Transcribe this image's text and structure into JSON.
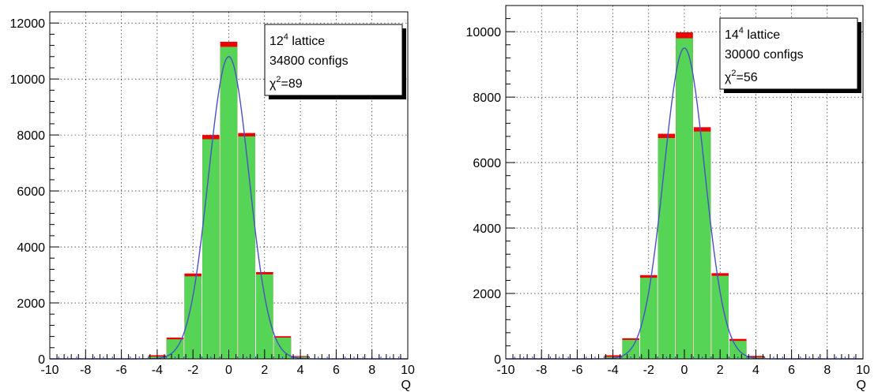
{
  "chart_data": [
    {
      "type": "bar",
      "xlabel": "Q",
      "ylabel": "",
      "xlim": [
        -10,
        10
      ],
      "ylim": [
        0,
        12400
      ],
      "xticks": [
        "-10",
        "-8",
        "-6",
        "-4",
        "-2",
        "0",
        "2",
        "4",
        "6",
        "8",
        "10"
      ],
      "yticks": [
        "0",
        "2000",
        "4000",
        "6000",
        "8000",
        "10000",
        "12000"
      ],
      "grid": true,
      "legend_position": "top-right",
      "legend_lines": [
        "12",
        "4",
        " lattice",
        "34800 configs",
        "χ",
        "2",
        "=89"
      ],
      "x": [
        -4,
        -3,
        -2,
        -1,
        0,
        1,
        2,
        3,
        4
      ],
      "series": [
        {
          "values": [
            80,
            700,
            2950,
            7850,
            11150,
            7950,
            3020,
            760,
            70
          ],
          "color": "#55d455"
        },
        {
          "values": [
            130,
            760,
            3050,
            8000,
            11330,
            8070,
            3100,
            810,
            100
          ],
          "color": "#ee0000"
        }
      ],
      "fit_peak": 10800,
      "fit_sigma": 1.13
    },
    {
      "type": "bar",
      "xlabel": "Q",
      "ylabel": "",
      "xlim": [
        -10,
        10
      ],
      "ylim": [
        0,
        10800
      ],
      "xticks": [
        "-10",
        "-8",
        "-6",
        "-4",
        "-2",
        "0",
        "2",
        "4",
        "6",
        "8",
        "10"
      ],
      "yticks": [
        "0",
        "2000",
        "4000",
        "6000",
        "8000",
        "10000"
      ],
      "grid": true,
      "legend_position": "top-right",
      "legend_lines": [
        "14",
        "4",
        " lattice",
        "30000 configs",
        "χ",
        "2",
        "=56"
      ],
      "x": [
        -4,
        -3,
        -2,
        -1,
        0,
        1,
        2,
        3,
        4
      ],
      "series": [
        {
          "values": [
            60,
            580,
            2480,
            6750,
            9800,
            6950,
            2540,
            550,
            50
          ],
          "color": "#55d455"
        },
        {
          "values": [
            110,
            630,
            2560,
            6880,
            9980,
            7080,
            2620,
            610,
            90
          ],
          "color": "#ee0000"
        }
      ],
      "fit_peak": 9500,
      "fit_sigma": 1.14
    }
  ]
}
